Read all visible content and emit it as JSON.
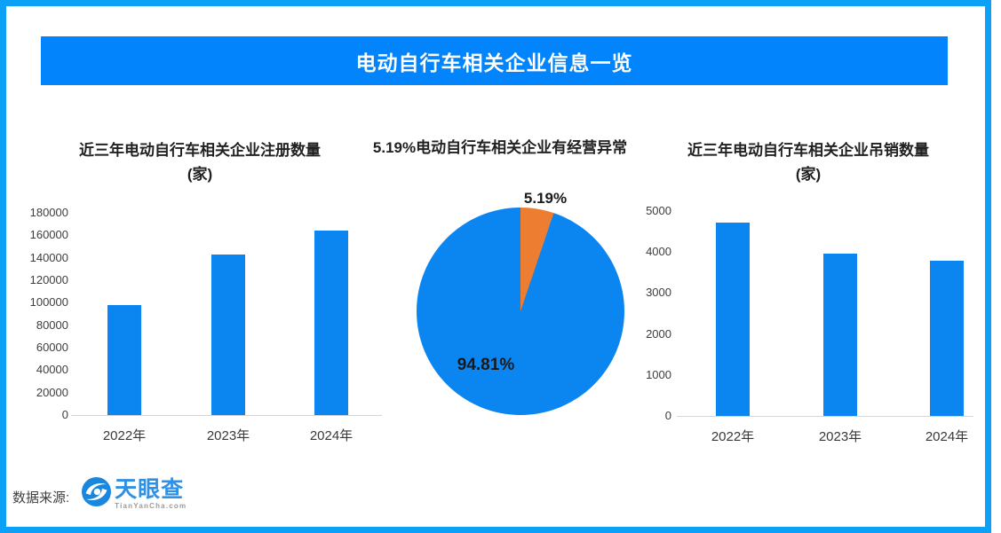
{
  "header": {
    "title": "电动自行车相关企业信息一览"
  },
  "footer": {
    "source_label": "数据来源:",
    "logo_name": "天眼查",
    "logo_domain": "TianYanCha.com"
  },
  "colors": {
    "frame_border": "#0da0f7",
    "banner_bg": "#0284fc",
    "banner_text": "#ffffff",
    "bar_blue": "#0b86f1",
    "pie_blue": "#0b86f1",
    "pie_orange": "#ed7d31",
    "axis_line": "#d6d6d6",
    "logo_blue": "#2f90e4"
  },
  "chart_data": [
    {
      "type": "bar",
      "title": "近三年电动自行车相关企业注册数量",
      "unit": "(家)",
      "categories": [
        "2022年",
        "2023年",
        "2024年"
      ],
      "values": [
        98000,
        143000,
        164000
      ],
      "ylim": [
        0,
        180000
      ],
      "yticks": [
        180000,
        160000,
        140000,
        120000,
        100000,
        80000,
        60000,
        40000,
        20000,
        0
      ],
      "grid": false,
      "legend": false,
      "bar_color": "#0b86f1"
    },
    {
      "type": "pie",
      "title": "5.19%电动自行车相关企业有经营异常",
      "slices": [
        {
          "label": "5.19%",
          "value": 5.19,
          "color": "#ed7d31"
        },
        {
          "label": "94.81%",
          "value": 94.81,
          "color": "#0b86f1"
        }
      ],
      "legend": false
    },
    {
      "type": "bar",
      "title": "近三年电动自行车相关企业吊销数量",
      "unit": "(家)",
      "categories": [
        "2022年",
        "2023年",
        "2024年"
      ],
      "values": [
        4720,
        3960,
        3780
      ],
      "ylim": [
        0,
        5000
      ],
      "yticks": [
        5000,
        4000,
        3000,
        2000,
        1000,
        0
      ],
      "grid": false,
      "legend": false,
      "bar_color": "#0b86f1"
    }
  ]
}
